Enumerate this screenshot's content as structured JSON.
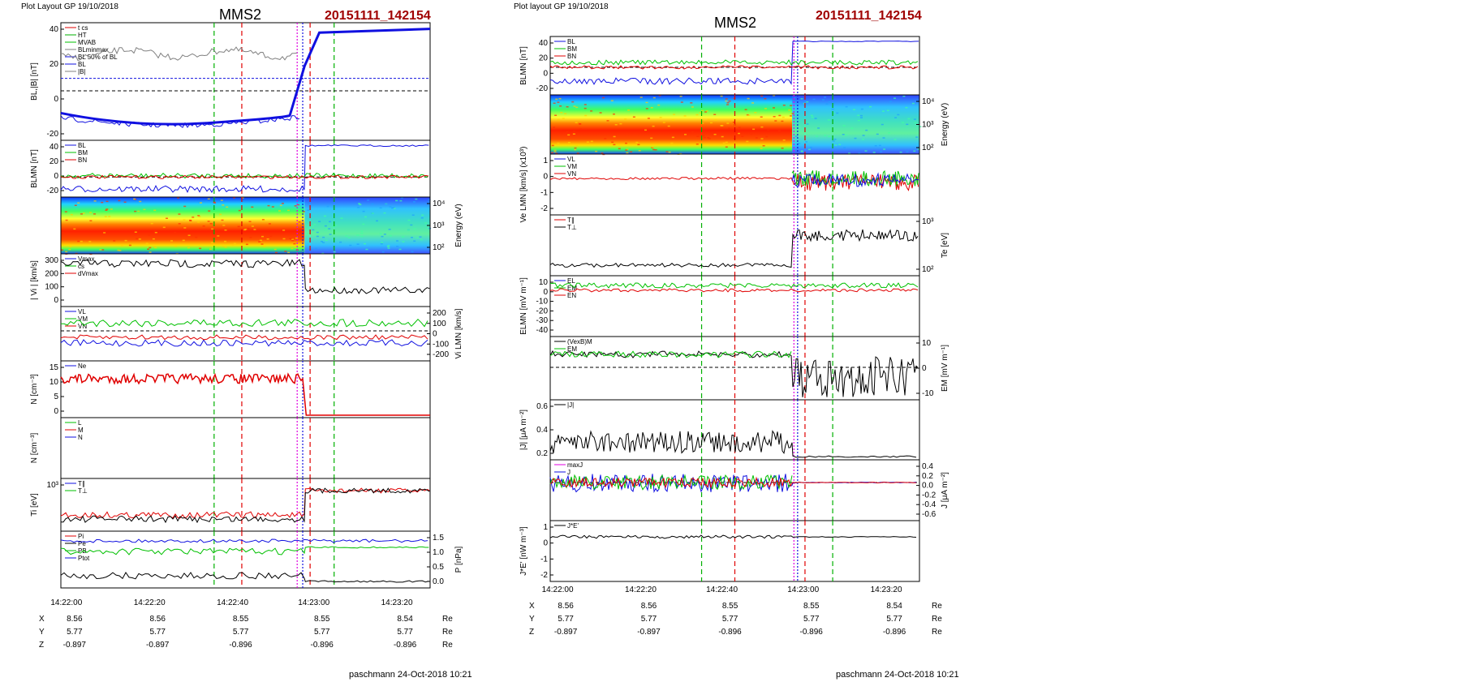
{
  "colors": {
    "cs": "#e00000",
    "ht": "#00b000",
    "mvab": "#00c000",
    "bl": "#1010e0",
    "bn": "#1010e0",
    "bm": "#00c000",
    "red": "#e00000",
    "green": "#00c000",
    "blue": "#1010e0",
    "magenta": "#e000e0",
    "gray": "#808080",
    "title_event": "#a00000"
  },
  "left": {
    "header": "Plot Layout GP 19/10/2018",
    "spacecraft": "MMS2",
    "event": "20151111_142154",
    "footer": "paschmann 24-Oct-2018 10:21",
    "time_ticks": [
      "14:22:00",
      "14:22:20",
      "14:22:40",
      "14:23:00",
      "14:23:20"
    ],
    "ephem": [
      {
        "name": "X",
        "values": [
          "8.56",
          "8.56",
          "8.55",
          "8.55",
          "8.54"
        ],
        "unit": "Re"
      },
      {
        "name": "Y",
        "values": [
          "5.77",
          "5.77",
          "5.77",
          "5.77",
          "5.77"
        ],
        "unit": "Re"
      },
      {
        "name": "Z",
        "values": [
          "-0.897",
          "-0.897",
          "-0.896",
          "-0.896",
          "-0.896"
        ],
        "unit": "Re"
      }
    ],
    "panels": {
      "p1": {
        "ylabel": "BL,|B| [nT]",
        "ticks": [
          "40",
          "20",
          "0",
          "-20"
        ],
        "legend": [
          "t cs",
          "HT",
          "MVAB",
          "BLminmax",
          "BL 50% of BL",
          "BL",
          "|B|"
        ]
      },
      "p2": {
        "ylabel": "BLMN [nT]",
        "ticks": [
          "40",
          "20",
          "0",
          "-20"
        ],
        "legend": [
          "BL",
          "BM",
          "BN"
        ]
      },
      "p3": {
        "ylabel": "Energy (eV)",
        "ticks": [
          "10⁴",
          "10³",
          "10²"
        ]
      },
      "p4": {
        "ylabel": "| Vi | [km/s]",
        "ticks": [
          "300",
          "200",
          "100",
          "0"
        ],
        "legend": [
          "Vmax",
          "cs",
          "dVmax"
        ]
      },
      "p5": {
        "ylabel": "Vi LMN [km/s]",
        "ticks": [
          "200",
          "100",
          "0",
          "-100",
          "-200"
        ],
        "legend": [
          "VL",
          "VM",
          "VN"
        ]
      },
      "p6": {
        "ylabel": "N [cm⁻³]",
        "ticks": [
          "15",
          "10",
          "5",
          "0"
        ],
        "legend": [
          "Ne"
        ]
      },
      "p7": {
        "ylabel": "N [cm⁻³]",
        "legend": [
          "L",
          "M",
          "N"
        ]
      },
      "p8": {
        "ylabel": "Ti [eV]",
        "ticks": [
          "10³"
        ],
        "legend": [
          "T∥",
          "T⊥"
        ]
      },
      "p9": {
        "ylabel": "P [nPa]",
        "ticks": [
          "1.5",
          "1.0",
          "0.5",
          "0.0"
        ],
        "legend": [
          "Pi",
          "Pe",
          "PB",
          "Ptot"
        ]
      }
    }
  },
  "right": {
    "header": "Plot layout GP 19/10/2018",
    "spacecraft": "MMS2",
    "event": "20151111_142154",
    "footer": "paschmann 24-Oct-2018 10:21",
    "time_ticks": [
      "14:22:00",
      "14:22:20",
      "14:22:40",
      "14:23:00",
      "14:23:20"
    ],
    "ephem": [
      {
        "name": "X",
        "values": [
          "8.56",
          "8.56",
          "8.55",
          "8.55",
          "8.54"
        ],
        "unit": "Re"
      },
      {
        "name": "Y",
        "values": [
          "5.77",
          "5.77",
          "5.77",
          "5.77",
          "5.77"
        ],
        "unit": "Re"
      },
      {
        "name": "Z",
        "values": [
          "-0.897",
          "-0.897",
          "-0.896",
          "-0.896",
          "-0.896"
        ],
        "unit": "Re"
      }
    ],
    "panels": {
      "r1": {
        "ylabel": "BLMN [nT]",
        "ticks": [
          "40",
          "20",
          "0",
          "-20"
        ],
        "legend": [
          "BL",
          "BM",
          "BN"
        ]
      },
      "r2": {
        "ylabel": "Energy (eV)",
        "ticks": [
          "10⁴",
          "10³",
          "10²"
        ]
      },
      "r3": {
        "ylabel": "Ve LMN [km/s] (x10³)",
        "ticks": [
          "1",
          "0",
          "-1",
          "-2"
        ],
        "legend": [
          "VL",
          "VM",
          "VN"
        ]
      },
      "r4": {
        "ylabel": "Te [eV]",
        "ticks": [
          "10³",
          "10²"
        ],
        "legend": [
          "T∥",
          "T⊥"
        ]
      },
      "r5": {
        "ylabel": "ELMN [mV m⁻¹]",
        "ticks": [
          "10",
          "0",
          "-10",
          "-20",
          "-30",
          "-40"
        ],
        "legend": [
          "EL",
          "EM",
          "EN"
        ]
      },
      "r6": {
        "ylabel": "EM [mV m⁻¹]",
        "ticks": [
          "10",
          "0",
          "-10"
        ],
        "legend": [
          "(VexB)M",
          "EM"
        ]
      },
      "r7": {
        "ylabel": "|J| [μA m⁻²]",
        "ticks": [
          "0.6",
          "0.4",
          "0.2"
        ],
        "legend": [
          "|J|"
        ]
      },
      "r8": {
        "ylabel": "J [μA m⁻²]",
        "ticks": [
          "0.4",
          "0.2",
          "0.0",
          "-0.2",
          "-0.4",
          "-0.6"
        ],
        "legend": [
          "maxJ",
          "J"
        ]
      },
      "r9": {
        "ylabel": "J*E' [nW m⁻³]",
        "ticks": [
          "1",
          "0",
          "-1",
          "-2"
        ],
        "legend": [
          "J*E'"
        ]
      }
    }
  },
  "chart_data": [
    {
      "type": "line",
      "title": "MMS2 20151111_142154",
      "xlabel": "",
      "x_ticks": [
        "14:22:00",
        "14:22:20",
        "14:22:40",
        "14:23:00",
        "14:23:20"
      ],
      "series": [
        {
          "name": "BL",
          "x": [
            "14:21:55",
            "14:22:10",
            "14:22:30",
            "14:22:45",
            "14:22:50",
            "14:22:54",
            "14:23:00",
            "14:23:25"
          ],
          "values": [
            -18,
            -24,
            -28,
            -20,
            -20,
            45,
            49,
            50
          ]
        },
        {
          "name": "|B|",
          "x": [
            "14:21:55",
            "14:22:10",
            "14:22:30",
            "14:22:45",
            "14:22:52"
          ],
          "values": [
            32,
            30,
            28,
            26,
            30
          ]
        }
      ],
      "ylabel": "BL,|B| [nT]",
      "ylim": [
        -40,
        50
      ]
    },
    {
      "type": "line",
      "title": "",
      "xlabel": "",
      "series": [
        {
          "name": "Ne",
          "x": [
            "14:21:55",
            "14:22:10",
            "14:22:30",
            "14:22:45",
            "14:22:52",
            "14:22:54",
            "14:23:25"
          ],
          "values": [
            13,
            12,
            14,
            12,
            13,
            0.5,
            0.5
          ]
        }
      ],
      "ylabel": "N [cm⁻³]",
      "ylim": [
        0,
        18
      ]
    }
  ]
}
